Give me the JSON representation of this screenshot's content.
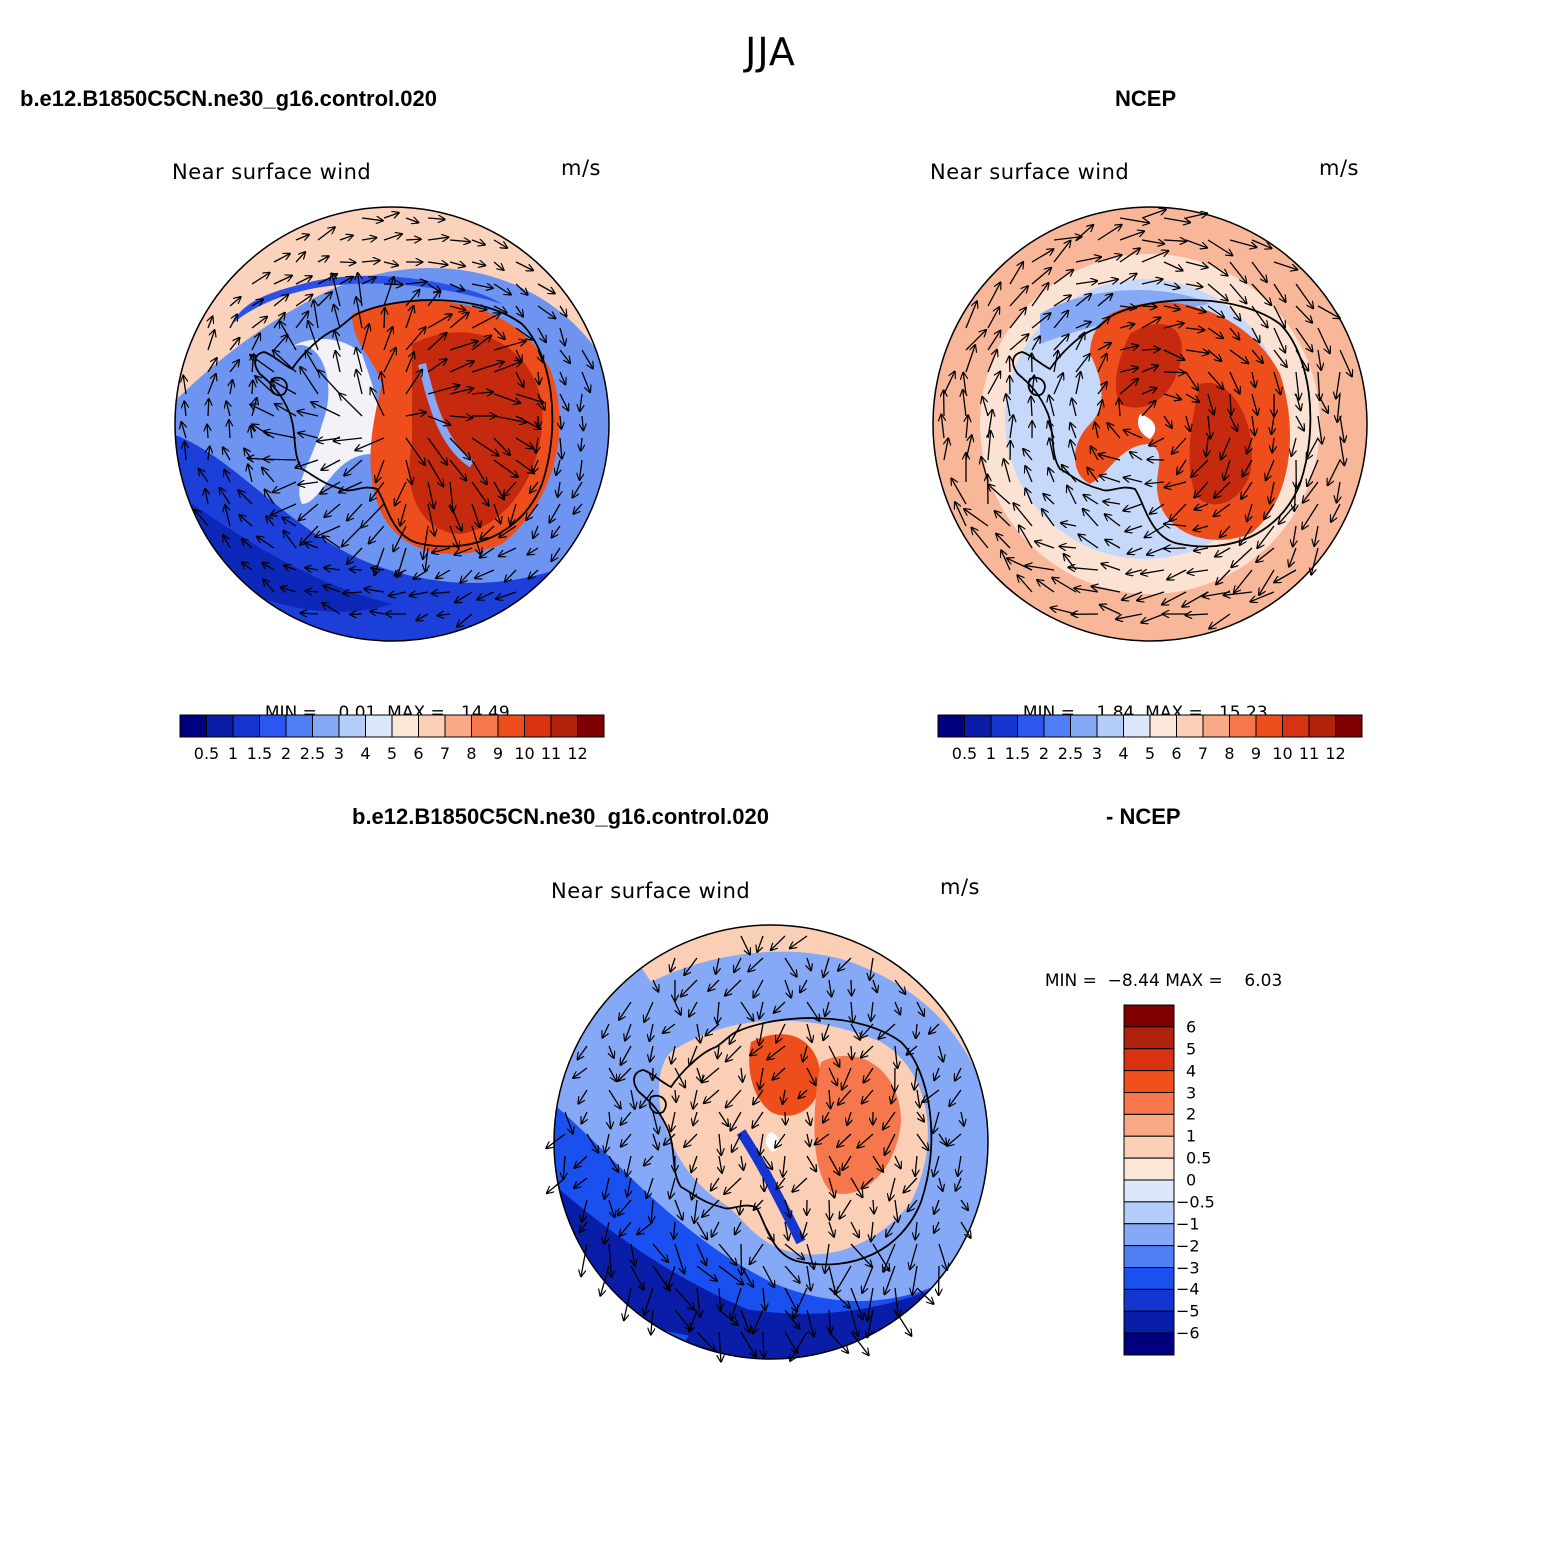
{
  "page": {
    "super_title": "JJA"
  },
  "panels": [
    {
      "case_title": "b.e12.B1850C5CN.ne30_g16.control.020",
      "variable_label": "Near surface wind",
      "units": "m/s",
      "min_label": "MIN =",
      "min_value": "0.01",
      "max_label": "MAX =",
      "max_value": "14.49"
    },
    {
      "case_title": "NCEP",
      "variable_label": "Near surface wind",
      "units": "m/s",
      "min_label": "MIN =",
      "min_value": "1.84",
      "max_label": "MAX =",
      "max_value": "15.23"
    },
    {
      "case_title_left": "b.e12.B1850C5CN.ne30_g16.control.020",
      "case_title_right": "- NCEP",
      "variable_label": "Near surface wind",
      "units": "m/s",
      "min_label": "MIN =",
      "min_value": "−8.44",
      "max_label": "MAX =",
      "max_value": "6.03"
    }
  ],
  "abs_colorbar": {
    "colors": [
      "#00007f",
      "#0a1da8",
      "#1535d0",
      "#2b57f0",
      "#4f7ef5",
      "#86a9f7",
      "#b4cdf9",
      "#dbe7fb",
      "#fbe6d8",
      "#fbcfb6",
      "#f9a986",
      "#f6774c",
      "#ee4d1c",
      "#d83212",
      "#b0220c",
      "#7f0000"
    ],
    "labels": [
      "0.5",
      "1",
      "1.5",
      "2",
      "2.5",
      "3",
      "4",
      "5",
      "6",
      "7",
      "8",
      "9",
      "10",
      "11",
      "12"
    ]
  },
  "diff_colorbar": {
    "colors": [
      "#7f0000",
      "#b0220c",
      "#d83212",
      "#f14f1b",
      "#f6774c",
      "#f9a986",
      "#fbcfb6",
      "#fbe6d8",
      "#dbe7fb",
      "#b4cdf9",
      "#86a9f7",
      "#4f7ef5",
      "#1a4ff0",
      "#1535d0",
      "#0a1da8",
      "#00007f"
    ],
    "labels": [
      "6",
      "5",
      "4",
      "3",
      "2",
      "1",
      "0.5",
      "0",
      "−0.5",
      "−1",
      "−2",
      "−3",
      "−4",
      "−5",
      "−6"
    ]
  }
}
